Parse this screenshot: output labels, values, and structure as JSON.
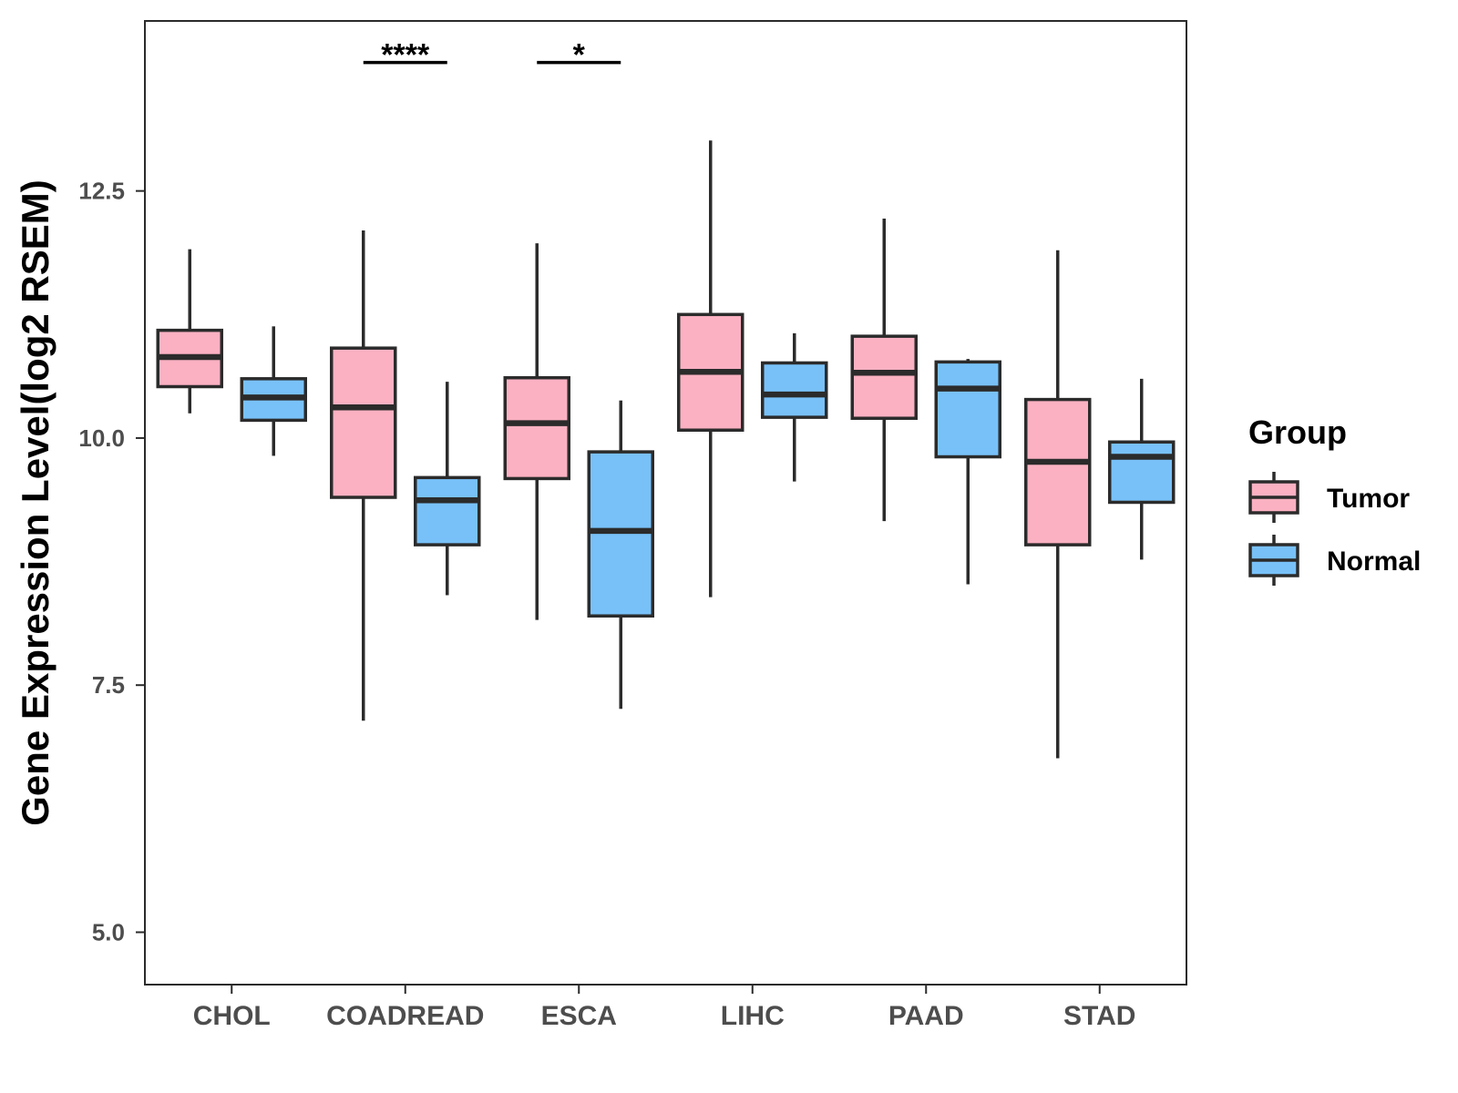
{
  "chart_data": {
    "type": "boxplot",
    "title": "",
    "xlabel": "",
    "ylabel": "Gene Expression Level(log2 RSEM)",
    "ylim": [
      4.47,
      14.22
    ],
    "yticks": [
      5.0,
      7.5,
      10.0,
      12.5
    ],
    "ytick_labels": [
      "5.0",
      "7.5",
      "10.0",
      "12.5"
    ],
    "categories": [
      "CHOL",
      "COADREAD",
      "ESCA",
      "LIHC",
      "PAAD",
      "STAD"
    ],
    "legend": {
      "title": "Group",
      "position": "right",
      "labels": [
        "Tumor",
        "Normal"
      ]
    },
    "colors": {
      "Tumor": "#FBB1C2",
      "Normal": "#78C1F8",
      "outline": "#2b2b2b"
    },
    "series": [
      {
        "name": "Tumor",
        "boxes": [
          {
            "category": "CHOL",
            "whisker_low": 10.25,
            "q1": 10.52,
            "median": 10.82,
            "q3": 11.09,
            "whisker_high": 11.91
          },
          {
            "category": "COADREAD",
            "whisker_low": 7.14,
            "q1": 9.4,
            "median": 10.31,
            "q3": 10.91,
            "whisker_high": 12.1
          },
          {
            "category": "ESCA",
            "whisker_low": 8.16,
            "q1": 9.59,
            "median": 10.15,
            "q3": 10.61,
            "whisker_high": 11.97
          },
          {
            "category": "LIHC",
            "whisker_low": 8.39,
            "q1": 10.08,
            "median": 10.67,
            "q3": 11.25,
            "whisker_high": 13.01
          },
          {
            "category": "PAAD",
            "whisker_low": 9.16,
            "q1": 10.2,
            "median": 10.66,
            "q3": 11.03,
            "whisker_high": 12.22
          },
          {
            "category": "STAD",
            "whisker_low": 6.76,
            "q1": 8.92,
            "median": 9.76,
            "q3": 10.39,
            "whisker_high": 11.9
          }
        ]
      },
      {
        "name": "Normal",
        "boxes": [
          {
            "category": "CHOL",
            "whisker_low": 9.82,
            "q1": 10.18,
            "median": 10.41,
            "q3": 10.6,
            "whisker_high": 11.13
          },
          {
            "category": "COADREAD",
            "whisker_low": 8.41,
            "q1": 8.92,
            "median": 9.37,
            "q3": 9.6,
            "whisker_high": 10.57
          },
          {
            "category": "ESCA",
            "whisker_low": 7.26,
            "q1": 8.2,
            "median": 9.06,
            "q3": 9.86,
            "whisker_high": 10.38
          },
          {
            "category": "LIHC",
            "whisker_low": 9.56,
            "q1": 10.21,
            "median": 10.44,
            "q3": 10.76,
            "whisker_high": 11.06
          },
          {
            "category": "PAAD",
            "whisker_low": 8.52,
            "q1": 9.81,
            "median": 10.5,
            "q3": 10.77,
            "whisker_high": 10.8
          },
          {
            "category": "STAD",
            "whisker_low": 8.77,
            "q1": 9.35,
            "median": 9.81,
            "q3": 9.96,
            "whisker_high": 10.6
          }
        ]
      }
    ],
    "significance": [
      {
        "category": "COADREAD",
        "label": "****",
        "y": 13.8
      },
      {
        "category": "ESCA",
        "label": "*",
        "y": 13.8
      }
    ]
  }
}
